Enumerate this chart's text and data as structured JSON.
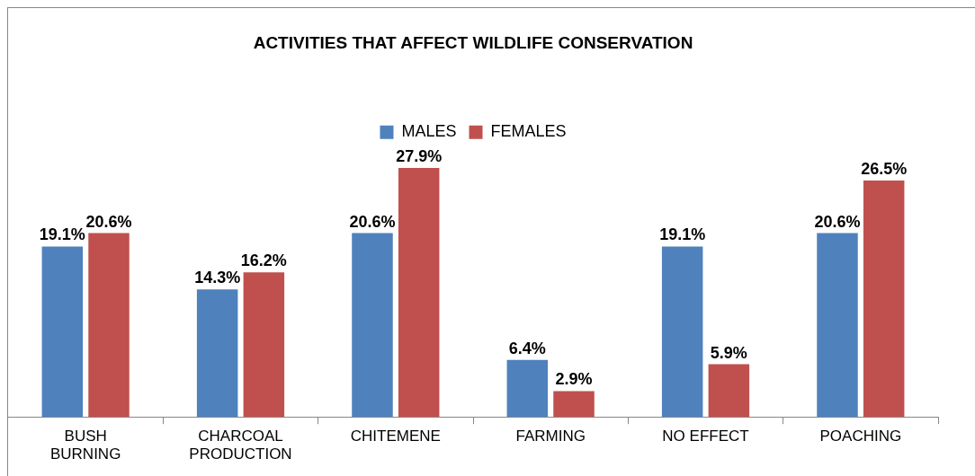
{
  "chart_data": {
    "type": "bar",
    "title": "ACTIVITIES THAT AFFECT WILDLIFE CONSERVATION",
    "categories": [
      "BUSH BURNING",
      "CHARCOAL PRODUCTION",
      "CHITEMENE",
      "FARMING",
      "NO EFFECT",
      "POACHING"
    ],
    "series": [
      {
        "name": "MALES",
        "color": "#4f81bd",
        "values": [
          19.1,
          14.3,
          20.6,
          6.4,
          19.1,
          20.6
        ],
        "value_labels": [
          "19.1%",
          "14.3%",
          "20.6%",
          "6.4%",
          "19.1%",
          "20.6%"
        ]
      },
      {
        "name": "FEMALES",
        "color": "#c0504d",
        "values": [
          20.6,
          16.2,
          27.9,
          2.9,
          5.9,
          26.5
        ],
        "value_labels": [
          "20.6%",
          "16.2%",
          "27.9%",
          "2.9%",
          "5.9%",
          "26.5%"
        ]
      }
    ],
    "legend": "top",
    "grid": false
  }
}
